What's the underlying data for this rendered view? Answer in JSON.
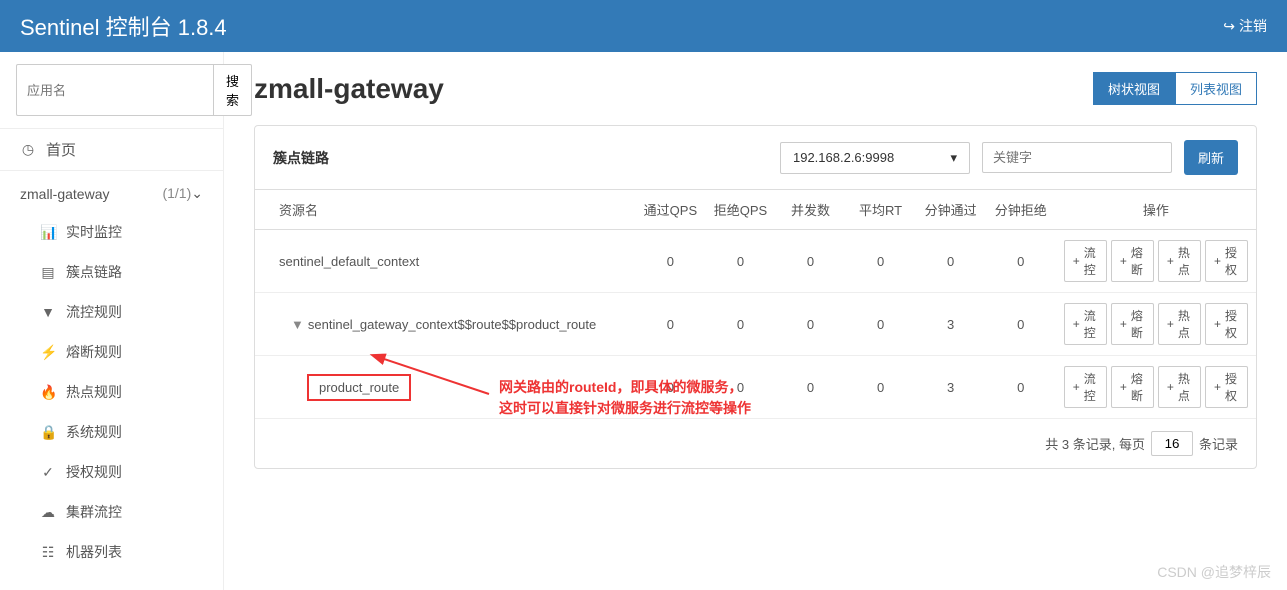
{
  "header": {
    "brand": "Sentinel 控制台 1.8.4",
    "logout": "注销"
  },
  "sidebar": {
    "search_placeholder": "应用名",
    "search_btn": "搜索",
    "home": "首页",
    "app_name": "zmall-gateway",
    "app_count": "(1/1)",
    "items": [
      {
        "icon": "📊",
        "label": "实时监控"
      },
      {
        "icon": "▤",
        "label": "簇点链路"
      },
      {
        "icon": "▼",
        "label": "流控规则"
      },
      {
        "icon": "⚡",
        "label": "熔断规则"
      },
      {
        "icon": "🔥",
        "label": "热点规则"
      },
      {
        "icon": "🔒",
        "label": "系统规则"
      },
      {
        "icon": "✓",
        "label": "授权规则"
      },
      {
        "icon": "☁",
        "label": "集群流控"
      },
      {
        "icon": "☷",
        "label": "机器列表"
      }
    ]
  },
  "page": {
    "title": "zmall-gateway",
    "view_tree": "树状视图",
    "view_list": "列表视图"
  },
  "panel": {
    "title": "簇点链路",
    "machine": "192.168.2.6:9998",
    "keyword_placeholder": "关键字",
    "refresh": "刷新"
  },
  "table": {
    "columns": [
      "资源名",
      "通过QPS",
      "拒绝QPS",
      "并发数",
      "平均RT",
      "分钟通过",
      "分钟拒绝",
      "操作"
    ],
    "rows": [
      {
        "name": "sentinel_default_context",
        "indent": 0,
        "caret": false,
        "hl": false,
        "vals": [
          "0",
          "0",
          "0",
          "0",
          "0",
          "0"
        ]
      },
      {
        "name": "sentinel_gateway_context$$route$$product_route",
        "indent": 1,
        "caret": true,
        "hl": false,
        "vals": [
          "0",
          "0",
          "0",
          "0",
          "3",
          "0"
        ]
      },
      {
        "name": "product_route",
        "indent": 2,
        "caret": false,
        "hl": true,
        "vals": [
          "0",
          "0",
          "0",
          "0",
          "3",
          "0"
        ]
      }
    ],
    "actions": [
      "流控",
      "熔断",
      "热点",
      "授权"
    ]
  },
  "footer": {
    "prefix": "共 3 条记录, 每页",
    "page_size": "16",
    "suffix": "条记录"
  },
  "annotation": {
    "line1": "网关路由的routeId，即具体的微服务，",
    "line2": "这时可以直接针对微服务进行流控等操作"
  },
  "watermark": "CSDN @追梦梓辰",
  "colors": {
    "primary": "#337ab7",
    "highlight": "#e33"
  }
}
